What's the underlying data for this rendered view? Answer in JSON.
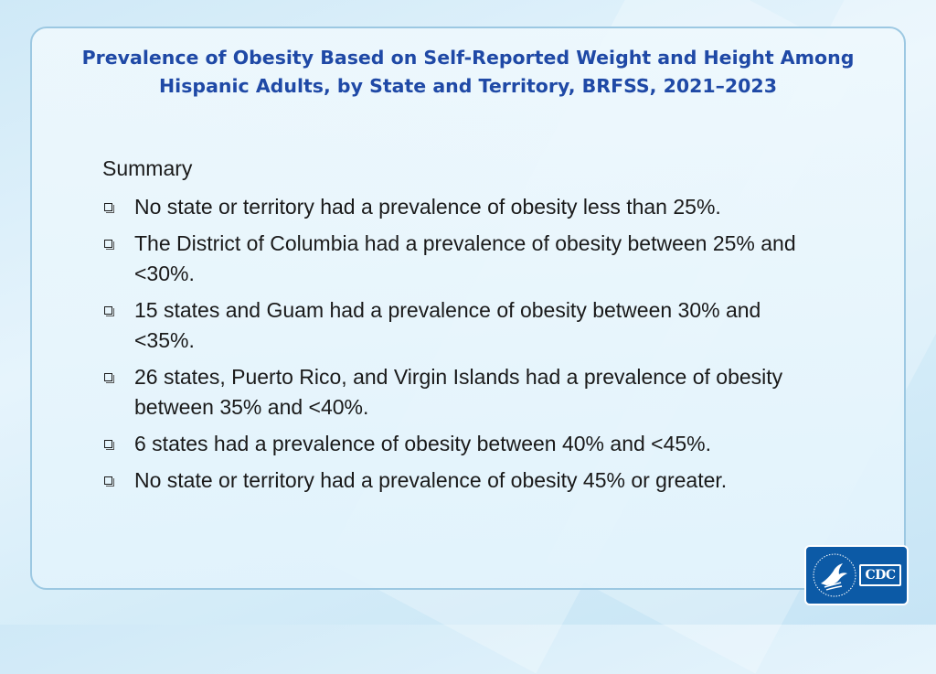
{
  "slide": {
    "title_line1": "Prevalence of Obesity Based on Self-Reported Weight and Height Among",
    "title_line2": "Hispanic Adults, by State and Territory, BRFSS, 2021–2023",
    "summary_heading": "Summary",
    "bullets": [
      "No state or territory had a prevalence of obesity less than 25%.",
      "The District of Columbia had a prevalence of obesity between 25% and <30%.",
      "15 states and Guam had a prevalence of obesity between 30% and <35%.",
      "26 states, Puerto Rico, and Virgin Islands had a prevalence of obesity between 35% and <40%.",
      "6 states had a prevalence of obesity between 40% and <45%.",
      "No state or territory had a prevalence of obesity 45% or greater."
    ],
    "bullet_icon": "hollow-square-bullet"
  },
  "logo": {
    "text": "CDC",
    "icon": "hhs-eagle-seal",
    "color": "#0c5aa6"
  },
  "colors": {
    "title": "#1f49a6",
    "body_text": "#1a1a1a",
    "panel_border": "#9cc8e2"
  }
}
